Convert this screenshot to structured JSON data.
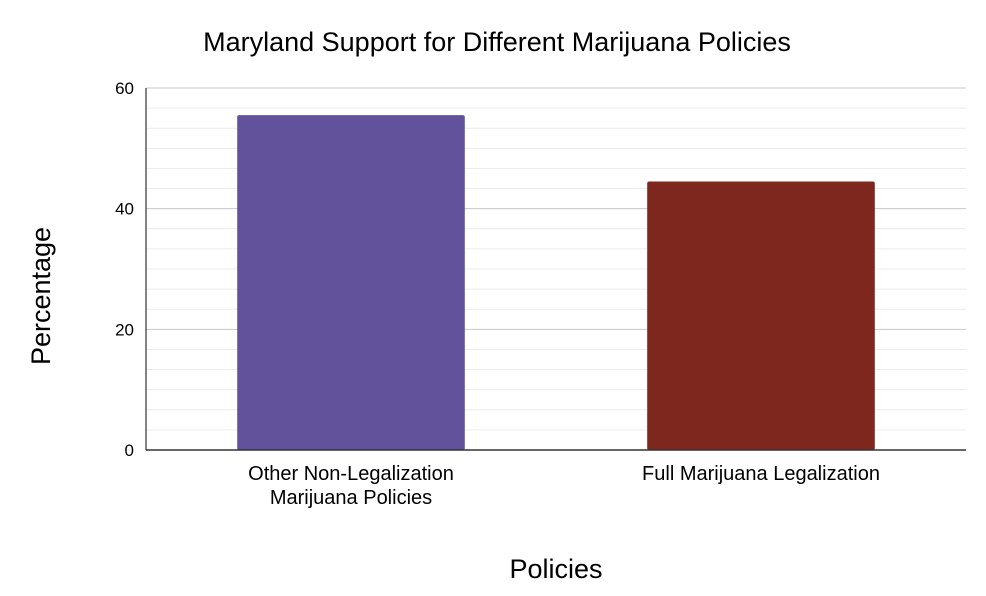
{
  "chart_data": {
    "type": "bar",
    "title": "Maryland Support for Different Marijuana Policies",
    "xlabel": "Policies",
    "ylabel": "Percentage",
    "categories": [
      [
        "Other Non-Legalization",
        "Marijuana Policies"
      ],
      [
        "Full Marijuana Legalization"
      ]
    ],
    "series": [
      {
        "values": [
          55.5,
          44.5
        ]
      }
    ],
    "colors": [
      "#62529c",
      "#7e271f"
    ],
    "ylim": [
      0,
      60
    ],
    "yticks": [
      0,
      20,
      40,
      60
    ],
    "minor_gridlines_per_major": 6,
    "grid": true,
    "legend": "none"
  },
  "style": {
    "major_grid_color": "#c8c8c8",
    "minor_grid_color": "#ececec",
    "axis_color": "#333333"
  }
}
